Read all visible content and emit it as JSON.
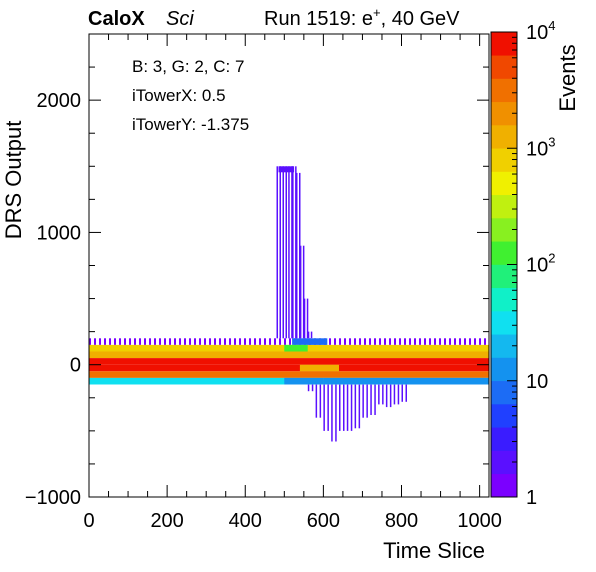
{
  "header": {
    "brand": "CaloX",
    "brand_suffix": "Sci",
    "run_prefix": "Run 1519: e",
    "run_sup": "+",
    "run_suffix": ", 40 GeV"
  },
  "info_box": {
    "line1": "B: 3, G: 2, C: 7",
    "line2": "iTowerX: 0.5",
    "line3": "iTowerY: -1.375"
  },
  "chart_data": {
    "type": "heatmap",
    "title": "",
    "xlabel": "Time Slice",
    "ylabel": "DRS Output",
    "zlabel": "Events",
    "xlim": [
      0,
      1024
    ],
    "ylim": [
      -1000,
      2500
    ],
    "zlim": [
      1,
      10000
    ],
    "z_scale": "log",
    "x_ticks": [
      "0",
      "200",
      "400",
      "600",
      "800",
      "1000"
    ],
    "x_tick_values": [
      0,
      200,
      400,
      600,
      800,
      1000
    ],
    "y_ticks": [
      "−1000",
      "0",
      "1000",
      "2000"
    ],
    "y_tick_values": [
      -1000,
      0,
      1000,
      2000
    ],
    "z_ticks": [
      {
        "value": 1,
        "label": "1"
      },
      {
        "value": 10,
        "label": "10"
      },
      {
        "value": 100,
        "base": "10",
        "exp": "2"
      },
      {
        "value": 1000,
        "base": "10",
        "exp": "3"
      },
      {
        "value": 10000,
        "base": "10",
        "exp": "4"
      }
    ],
    "palette": [
      "#7b00ff",
      "#5a10ff",
      "#3a1cff",
      "#2040ff",
      "#1c6cf5",
      "#1492ef",
      "#14b8ef",
      "#10e0f0",
      "#10f0c8",
      "#20f07a",
      "#40f030",
      "#88f020",
      "#c0f010",
      "#f0f000",
      "#f0d000",
      "#f0b000",
      "#f09000",
      "#f07000",
      "#f04800",
      "#f01000"
    ],
    "bands": [
      {
        "x": [
          0,
          1024
        ],
        "y": [
          150,
          200
        ],
        "z": 1.5,
        "style": "sparse"
      },
      {
        "x": [
          0,
          1024
        ],
        "y": [
          100,
          150
        ],
        "z": 700,
        "style": "fill"
      },
      {
        "x": [
          0,
          1024
        ],
        "y": [
          50,
          100
        ],
        "z": 1500,
        "style": "fill"
      },
      {
        "x": [
          0,
          1024
        ],
        "y": [
          0,
          50
        ],
        "z": 8000,
        "style": "fill"
      },
      {
        "x": [
          0,
          1024
        ],
        "y": [
          -50,
          0
        ],
        "z": 9000,
        "style": "fill"
      },
      {
        "x": [
          0,
          1024
        ],
        "y": [
          -100,
          -50
        ],
        "z": 3000,
        "style": "fill"
      },
      {
        "x": [
          0,
          1024
        ],
        "y": [
          -150,
          -100
        ],
        "z": 30,
        "style": "fill"
      },
      {
        "x": [
          500,
          600
        ],
        "y": [
          -150,
          -100
        ],
        "z": 12,
        "style": "fill"
      },
      {
        "x": [
          600,
          1024
        ],
        "y": [
          -150,
          -100
        ],
        "z": 10,
        "style": "fill"
      },
      {
        "x": [
          520,
          610
        ],
        "y": [
          150,
          200
        ],
        "z": 8,
        "style": "fill"
      },
      {
        "x": [
          500,
          560
        ],
        "y": [
          100,
          150
        ],
        "z": 120,
        "style": "fill"
      },
      {
        "x": [
          540,
          640
        ],
        "y": [
          -50,
          0
        ],
        "z": 1000,
        "style": "fill"
      }
    ],
    "peak": {
      "x": [
        480,
        510,
        520,
        530,
        540,
        550,
        560,
        570
      ],
      "y_top": [
        1500,
        1500,
        1500,
        1450,
        900,
        500,
        250,
        200
      ],
      "y_bottom": [
        200,
        200,
        200,
        200,
        200,
        200,
        200,
        200
      ],
      "z": 2
    },
    "undershoot": {
      "x": [
        560,
        580,
        600,
        620,
        640,
        660,
        680,
        700,
        720,
        740,
        760,
        780,
        800,
        820
      ],
      "y_bottom": [
        -200,
        -400,
        -500,
        -580,
        -500,
        -500,
        -480,
        -400,
        -380,
        -300,
        -320,
        -300,
        -280,
        -250
      ],
      "z": 2
    }
  }
}
